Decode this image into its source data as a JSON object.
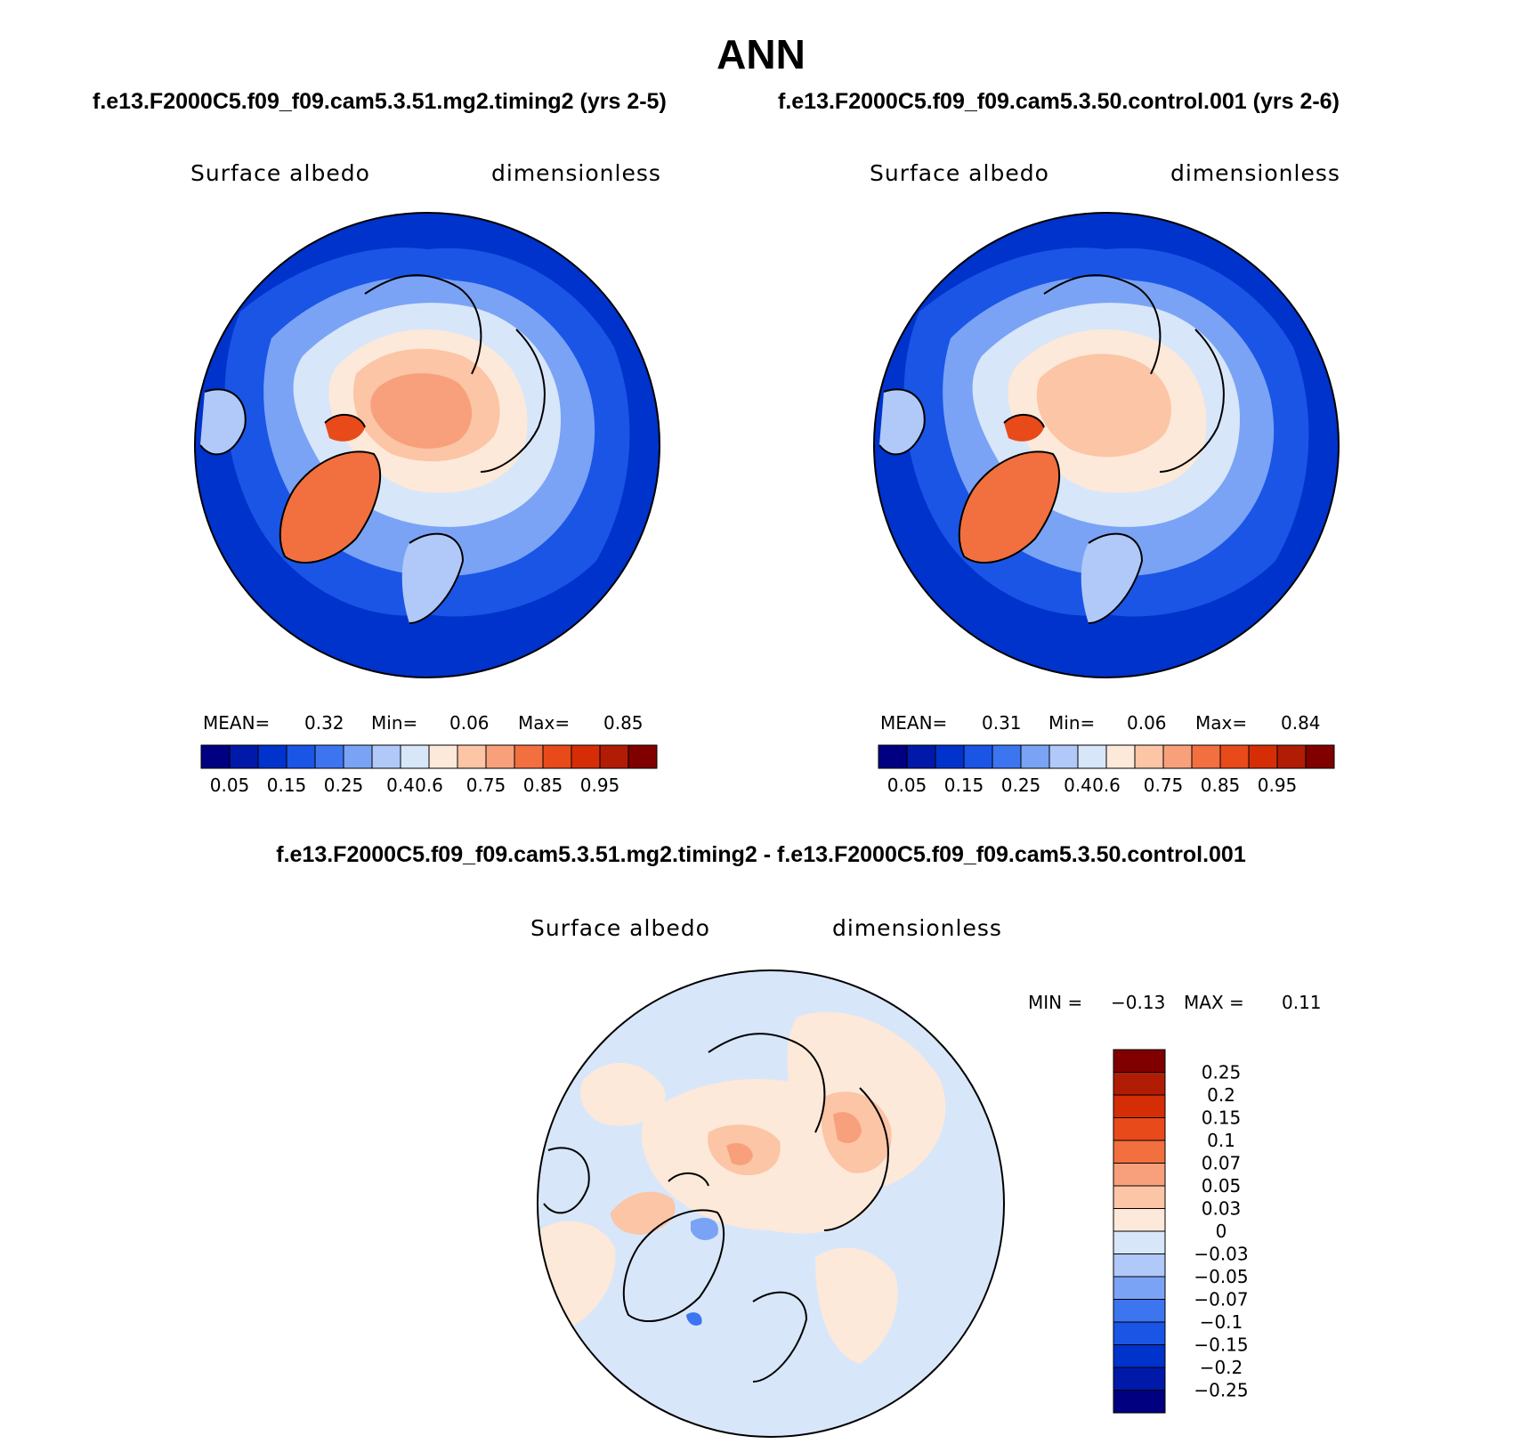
{
  "title": "ANN",
  "case_titles": {
    "left": "f.e13.F2000C5.f09_f09.cam5.3.51.mg2.timing2 (yrs 2-5)",
    "right": "f.e13.F2000C5.f09_f09.cam5.3.50.control.001 (yrs 2-6)"
  },
  "panels": {
    "left": {
      "variable": "Surface albedo",
      "units": "dimensionless",
      "mean_label": "MEAN=",
      "mean": "0.32",
      "min_label": "Min=",
      "min": "0.06",
      "max_label": "Max=",
      "max": "0.85"
    },
    "right": {
      "variable": "Surface albedo",
      "units": "dimensionless",
      "mean_label": "MEAN=",
      "mean": "0.31",
      "min_label": "Min=",
      "min": "0.06",
      "max_label": "Max=",
      "max": "0.84"
    },
    "diff": {
      "title": "f.e13.F2000C5.f09_f09.cam5.3.51.mg2.timing2 - f.e13.F2000C5.f09_f09.cam5.3.50.control.001",
      "variable": "Surface albedo",
      "units": "dimensionless",
      "min_label": "MIN =",
      "min": "−0.13",
      "max_label": "MAX =",
      "max": "0.11"
    }
  },
  "colorbar_abs": {
    "colors": [
      "#000080",
      "#0019a8",
      "#0033cc",
      "#1a55e6",
      "#3d75f0",
      "#7aa3f5",
      "#b0c9f8",
      "#d8e6fa",
      "#fde9d9",
      "#fbc5a6",
      "#f8a07b",
      "#f2703f",
      "#e84a1a",
      "#d52e06",
      "#b01d04",
      "#800000"
    ],
    "labels": [
      "0.05",
      "0.15",
      "0.25",
      "0.4",
      "0.6",
      "0.75",
      "0.85",
      "0.95"
    ]
  },
  "colorbar_diff": {
    "colors": [
      "#800000",
      "#b01d04",
      "#d52e06",
      "#e84a1a",
      "#f2703f",
      "#f8a07b",
      "#fbc5a6",
      "#fde9d9",
      "#d8e6fa",
      "#b0c9f8",
      "#7aa3f5",
      "#3d75f0",
      "#1a55e6",
      "#0033cc",
      "#0019a8",
      "#000080"
    ],
    "labels": [
      "0.25",
      "0.2",
      "0.15",
      "0.1",
      "0.07",
      "0.05",
      "0.03",
      "0",
      "−0.03",
      "−0.05",
      "−0.07",
      "−0.1",
      "−0.15",
      "−0.2",
      "−0.25"
    ]
  },
  "map_palette": {
    "ocean_deep": "#0033cc",
    "ocean_mid": "#1a55e6",
    "sea_ice_edge": "#7aa3f5",
    "sea_ice": "#d8e6fa",
    "ice_low": "#fde9d9",
    "ice_mid": "#fbc5a6",
    "ice_high": "#f8a07b",
    "greenland": "#f2703f",
    "diff_background": "#d8e6fa",
    "diff_positive_low": "#fde9d9",
    "diff_positive_mid": "#fbc5a6",
    "diff_positive_high": "#f8a07b",
    "diff_negative": "#7aa3f5"
  }
}
